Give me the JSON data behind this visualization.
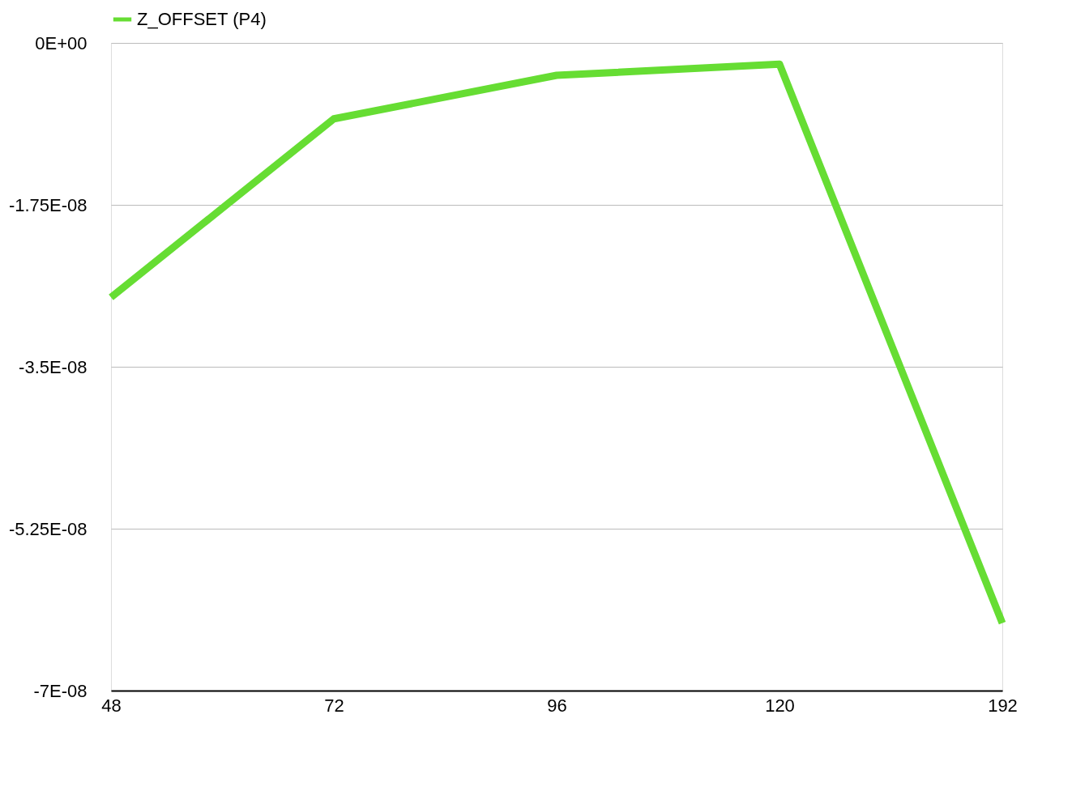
{
  "chart_data": {
    "type": "line",
    "categories": [
      "48",
      "72",
      "96",
      "120",
      "192"
    ],
    "series": [
      {
        "name": "Z_OFFSET (P4)",
        "color": "#66dd33",
        "values": [
          -2.75e-08,
          -8.2e-09,
          -3.5e-09,
          -2.3e-09,
          -6.27e-08
        ]
      }
    ],
    "ylim": [
      -7e-08,
      0
    ],
    "yticks": [
      {
        "value": 0,
        "label": "0E+00"
      },
      {
        "value": -1.75e-08,
        "label": "-1.75E-08"
      },
      {
        "value": -3.5e-08,
        "label": "-3.5E-08"
      },
      {
        "value": -5.25e-08,
        "label": "-5.25E-08"
      },
      {
        "value": -7e-08,
        "label": "-7E-08"
      }
    ],
    "grid": "y",
    "legend": "top",
    "marker": "none",
    "line_style": "solid"
  }
}
